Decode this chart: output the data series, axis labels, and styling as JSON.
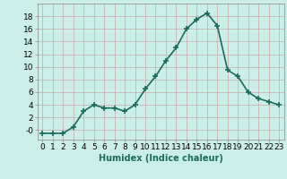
{
  "x": [
    0,
    1,
    2,
    3,
    4,
    5,
    6,
    7,
    8,
    9,
    10,
    11,
    12,
    13,
    14,
    15,
    16,
    17,
    18,
    19,
    20,
    21,
    22,
    23
  ],
  "y": [
    -0.5,
    -0.5,
    -0.5,
    0.5,
    3.0,
    4.0,
    3.5,
    3.5,
    3.0,
    4.0,
    6.5,
    8.5,
    11.0,
    13.0,
    16.0,
    17.5,
    18.5,
    16.5,
    9.5,
    8.5,
    6.0,
    5.0,
    4.5,
    4.0
  ],
  "line_color": "#1a6b5a",
  "marker": "+",
  "markersize": 4,
  "markeredgewidth": 1.2,
  "linewidth": 1.2,
  "xlabel": "Humidex (Indice chaleur)",
  "ylabel": "",
  "xlim": [
    -0.5,
    23.5
  ],
  "ylim": [
    -1.5,
    20
  ],
  "yticks": [
    0,
    2,
    4,
    6,
    8,
    10,
    12,
    14,
    16,
    18
  ],
  "ytick_labels": [
    "-0",
    "2",
    "4",
    "6",
    "8",
    "10",
    "12",
    "14",
    "16",
    "18"
  ],
  "xticks": [
    0,
    1,
    2,
    3,
    4,
    5,
    6,
    7,
    8,
    9,
    10,
    11,
    12,
    13,
    14,
    15,
    16,
    17,
    18,
    19,
    20,
    21,
    22,
    23
  ],
  "grid_color": "#c8a8a8",
  "bg_color": "#cceee8",
  "fig_bg_color": "#cceee8",
  "xlabel_fontsize": 7,
  "tick_fontsize": 6.5
}
